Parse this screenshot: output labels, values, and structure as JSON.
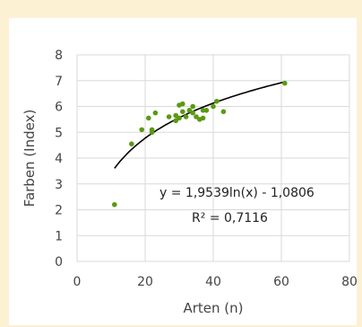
{
  "chart_data": {
    "type": "scatter",
    "xlabel": "Arten (n)",
    "ylabel": "Farben (Index)",
    "xlim": [
      0,
      80
    ],
    "ylim": [
      0,
      8
    ],
    "xticks": [
      0,
      20,
      40,
      60,
      80
    ],
    "yticks": [
      0,
      1,
      2,
      3,
      4,
      5,
      6,
      7,
      8
    ],
    "grid": true,
    "colors": {
      "points": "#5a9a12",
      "trendline": "#000000"
    },
    "points": [
      {
        "x": 11,
        "y": 2.2
      },
      {
        "x": 16,
        "y": 4.55
      },
      {
        "x": 19,
        "y": 5.1
      },
      {
        "x": 21,
        "y": 5.55
      },
      {
        "x": 22,
        "y": 5.0
      },
      {
        "x": 22,
        "y": 5.1
      },
      {
        "x": 23,
        "y": 5.75
      },
      {
        "x": 27,
        "y": 5.6
      },
      {
        "x": 29,
        "y": 5.45
      },
      {
        "x": 29,
        "y": 5.65
      },
      {
        "x": 30,
        "y": 5.55
      },
      {
        "x": 30,
        "y": 6.05
      },
      {
        "x": 31,
        "y": 6.1
      },
      {
        "x": 31,
        "y": 5.8
      },
      {
        "x": 32,
        "y": 5.6
      },
      {
        "x": 33,
        "y": 5.85
      },
      {
        "x": 34,
        "y": 6.0
      },
      {
        "x": 34,
        "y": 5.75
      },
      {
        "x": 35,
        "y": 5.6
      },
      {
        "x": 36,
        "y": 5.5
      },
      {
        "x": 37,
        "y": 5.55
      },
      {
        "x": 37,
        "y": 5.85
      },
      {
        "x": 38,
        "y": 5.85
      },
      {
        "x": 40,
        "y": 6.0
      },
      {
        "x": 41,
        "y": 6.2
      },
      {
        "x": 43,
        "y": 5.8
      },
      {
        "x": 61,
        "y": 6.9
      }
    ],
    "trendline": {
      "type": "logarithmic",
      "a": 1.9539,
      "b": -1.0806,
      "x_range": [
        11,
        61
      ],
      "equation": "y = 1,9539ln(x) - 1,0806",
      "r2_label": "R² = 0,7116"
    }
  }
}
